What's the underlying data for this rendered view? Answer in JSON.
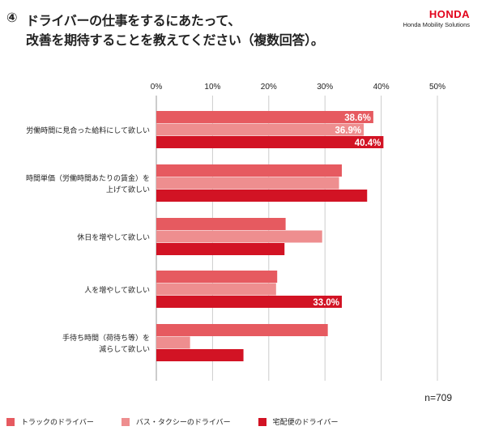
{
  "title": {
    "number": "④",
    "line1": "ドライバーの仕事をするにあたって、",
    "line2": "改善を期待することを教えてください（複数回答）。"
  },
  "brand": {
    "logo": "HONDA",
    "sub": "Honda Mobility Solutions"
  },
  "sample_size": "n=709",
  "colors": {
    "truck": "#e65a60",
    "bus_taxi": "#ee8e8f",
    "delivery": "#d21324",
    "grid": "#cccccc"
  },
  "chart_data": {
    "type": "bar",
    "orientation": "horizontal",
    "xlim": [
      0,
      50
    ],
    "x_ticks": [
      "0%",
      "10%",
      "20%",
      "30%",
      "40%",
      "50%"
    ],
    "categories": [
      [
        "労働時間に見合った給料にして欲しい"
      ],
      [
        "時間単価（労働時間あたりの賃金）を",
        "上げて欲しい"
      ],
      [
        "休日を増やして欲しい"
      ],
      [
        "人を増やして欲しい"
      ],
      [
        "手待ち時間（荷待ち等）を",
        "減らして欲しい"
      ]
    ],
    "series": [
      {
        "name": "トラックのドライバー",
        "color_key": "truck",
        "values": [
          38.6,
          33.0,
          23.0,
          21.5,
          30.5
        ],
        "labels": [
          "38.6%",
          "",
          "",
          "",
          ""
        ]
      },
      {
        "name": "バス・タクシーのドライバー",
        "color_key": "bus_taxi",
        "values": [
          36.9,
          32.5,
          29.5,
          21.3,
          6.0
        ],
        "labels": [
          "36.9%",
          "",
          "",
          "",
          ""
        ]
      },
      {
        "name": "宅配便のドライバー",
        "color_key": "delivery",
        "values": [
          40.4,
          37.5,
          22.8,
          33.0,
          15.5
        ],
        "labels": [
          "40.4%",
          "",
          "",
          "33.0%",
          ""
        ]
      }
    ]
  }
}
